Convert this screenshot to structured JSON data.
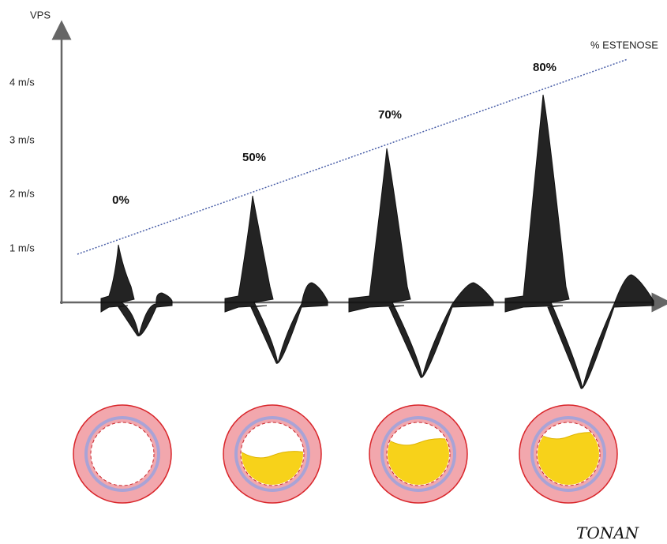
{
  "axis": {
    "y_label": "VPS",
    "y_levels": [
      "4 m/s",
      "3 m/s",
      "2 m/s",
      "1 m/s"
    ],
    "trend_label": "% ESTENOSE"
  },
  "stenosis_levels": [
    "0%",
    "50%",
    "70%",
    "80%"
  ],
  "signature": "TONAN"
}
